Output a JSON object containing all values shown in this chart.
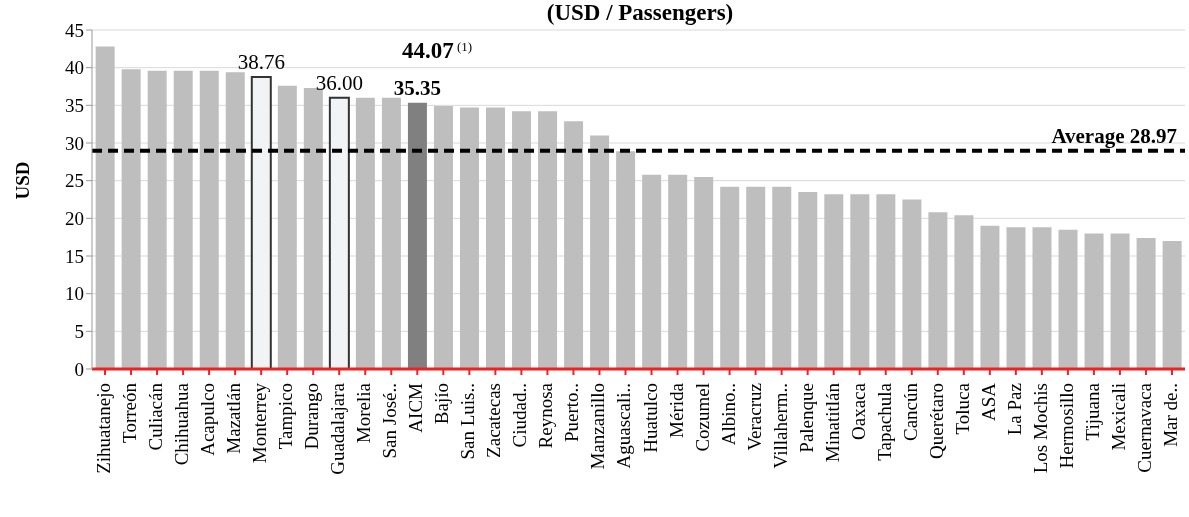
{
  "chart_data": {
    "type": "bar",
    "title": "(USD / Passengers)",
    "ylabel": "USD",
    "categories": [
      "Zihuatanejo",
      "Torreón",
      "Culiacán",
      "Chihuahua",
      "Acapulco",
      "Mazatlán",
      "Monterrey",
      "Tampico",
      "Durango",
      "Guadalajara",
      "Morelia",
      "San José..",
      "AICM",
      "Bajío",
      "San Luis..",
      "Zacatecas",
      "Ciudad..",
      "Reynosa",
      "Puerto..",
      "Manzanillo",
      "Aguascali..",
      "Huatulco",
      "Mérida",
      "Cozumel",
      "Albino..",
      "Veracruz",
      "Villaherm..",
      "Palenque",
      "Minatitlán",
      "Oaxaca",
      "Tapachula",
      "Cancún",
      "Querétaro",
      "Toluca",
      "ASA",
      "La Paz",
      "Los Mochis",
      "Hermosillo",
      "Tijuana",
      "Mexicali",
      "Cuernavaca",
      "Mar de.."
    ],
    "values": [
      42.8,
      39.8,
      39.6,
      39.6,
      39.6,
      39.4,
      38.76,
      37.6,
      37.3,
      36.0,
      36.0,
      36.0,
      35.35,
      34.9,
      34.7,
      34.7,
      34.2,
      34.2,
      32.9,
      31.0,
      28.9,
      25.8,
      25.8,
      25.5,
      24.2,
      24.2,
      24.2,
      23.5,
      23.2,
      23.2,
      23.2,
      22.5,
      20.8,
      20.4,
      19.0,
      18.8,
      18.8,
      18.5,
      18.0,
      18.0,
      17.4,
      17.0
    ],
    "colors": [
      "#bfbebf",
      "#bfbebf",
      "#bfbebf",
      "#bfbebf",
      "#bfbebf",
      "#bfbebf",
      "#f2f3f5",
      "#bfbebf",
      "#bfbebf",
      "#f2f3f5",
      "#bfbebf",
      "#bfbebf",
      "#808080",
      "#bfbebf",
      "#bfbebf",
      "#bfbebf",
      "#bfbebf",
      "#bfbebf",
      "#bfbebf",
      "#bfbebf",
      "#bfbebf",
      "#bfbebf",
      "#bfbebf",
      "#bfbebf",
      "#bfbebf",
      "#bfbebf",
      "#bfbebf",
      "#bfbebf",
      "#bfbebf",
      "#bfbebf",
      "#bfbebf",
      "#bfbebf",
      "#bfbebf",
      "#bfbebf",
      "#bfbebf",
      "#bfbebf",
      "#bfbebf",
      "#bfbebf",
      "#bfbebf",
      "#bfbebf",
      "#bfbebf",
      "#bfbebf"
    ],
    "value_labels": [
      null,
      null,
      null,
      null,
      null,
      null,
      "38.76",
      null,
      null,
      "36.00",
      null,
      null,
      "35.35",
      null,
      null,
      null,
      null,
      null,
      null,
      null,
      null,
      null,
      null,
      null,
      null,
      null,
      null,
      null,
      null,
      null,
      null,
      null,
      null,
      null,
      null,
      null,
      null,
      null,
      null,
      null,
      null,
      null
    ],
    "annotations": [
      "44.07$^{(1)}$"
    ],
    "ref_lines": [
      {
        "axis": "y",
        "value": 28.97,
        "label": "Average 28.97",
        "color": "#000000",
        "line_style": "dashed"
      }
    ],
    "ylim": [
      0,
      45
    ],
    "yticks": [
      0,
      5,
      10,
      15,
      20,
      25,
      30,
      35,
      40,
      45
    ],
    "grid": "y",
    "legend": false
  }
}
